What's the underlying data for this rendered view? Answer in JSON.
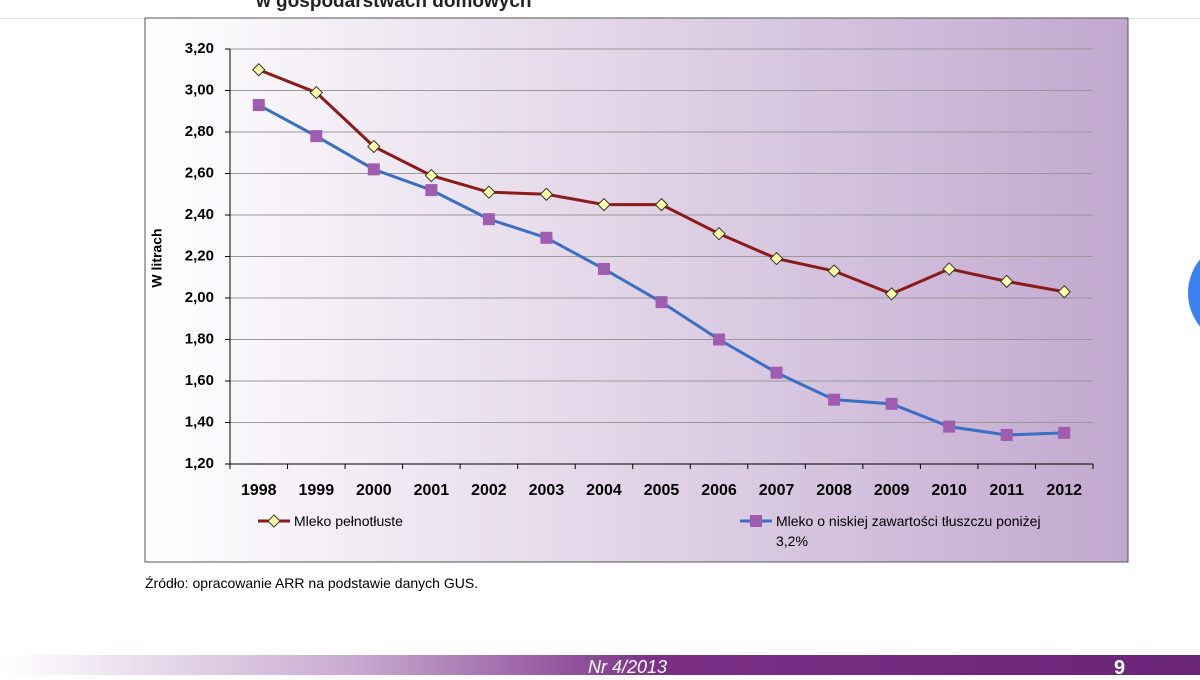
{
  "header_title": "w gospodarstwach domowych",
  "chart_data": {
    "type": "line",
    "y_label": "W litrach",
    "categories": [
      "1998",
      "1999",
      "2000",
      "2001",
      "2002",
      "2003",
      "2004",
      "2005",
      "2006",
      "2007",
      "2008",
      "2009",
      "2010",
      "2011",
      "2012"
    ],
    "series": [
      {
        "name": "Mleko pełnotłuste",
        "color": "#8b1a1a",
        "marker": "diamond",
        "marker_color": "#ffffa8",
        "values": [
          3.1,
          2.99,
          2.73,
          2.59,
          2.51,
          2.5,
          2.45,
          2.45,
          2.31,
          2.19,
          2.13,
          2.02,
          2.14,
          2.08,
          2.03
        ]
      },
      {
        "name": "Mleko o niskiej zawartości tłuszczu poniżej 3,2%",
        "color": "#3a6fc4",
        "marker": "square",
        "marker_color": "#a05cb0",
        "values": [
          2.93,
          2.78,
          2.62,
          2.52,
          2.38,
          2.29,
          2.14,
          1.98,
          1.8,
          1.64,
          1.51,
          1.49,
          1.38,
          1.34,
          1.35
        ]
      }
    ],
    "ylim": [
      1.2,
      3.2
    ],
    "yticks": [
      {
        "value": 1.2,
        "label": "1,20"
      },
      {
        "value": 1.4,
        "label": "1,40"
      },
      {
        "value": 1.6,
        "label": "1,60"
      },
      {
        "value": 1.8,
        "label": "1,80"
      },
      {
        "value": 2.0,
        "label": "2,00"
      },
      {
        "value": 2.2,
        "label": "2,20"
      },
      {
        "value": 2.4,
        "label": "2,40"
      },
      {
        "value": 2.6,
        "label": "2,60"
      },
      {
        "value": 2.8,
        "label": "2,80"
      },
      {
        "value": 3.0,
        "label": "3,00"
      },
      {
        "value": 3.2,
        "label": "3,20"
      }
    ],
    "grid": true
  },
  "source": "Źródło: opracowanie ARR na podstawie danych GUS.",
  "footer": {
    "issue": "Nr 4/2013",
    "page": "9"
  }
}
